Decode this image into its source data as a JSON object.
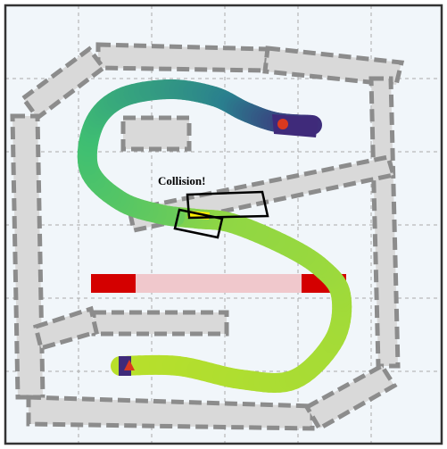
{
  "annotation": {
    "collision_label": "Collision!"
  },
  "colors": {
    "background": "#f1f6fa",
    "frame": "#333333",
    "grid": "#aaaaaa",
    "obstacle_fill": "#d9d9d9",
    "obstacle_stroke": "#8c8c8c",
    "barrier_solid": "#d40000",
    "barrier_faded": "#f0c8cc",
    "trajectory_start": "#3f2a7a",
    "trajectory_end": "#b9e02a",
    "start_marker": "#d9391f",
    "goal_marker": "#d9391f",
    "collision_box": "#000000",
    "collision_highlight": "#ffee00"
  },
  "markers": {
    "start_icon": "triangle-icon",
    "goal_icon": "circle-icon"
  }
}
